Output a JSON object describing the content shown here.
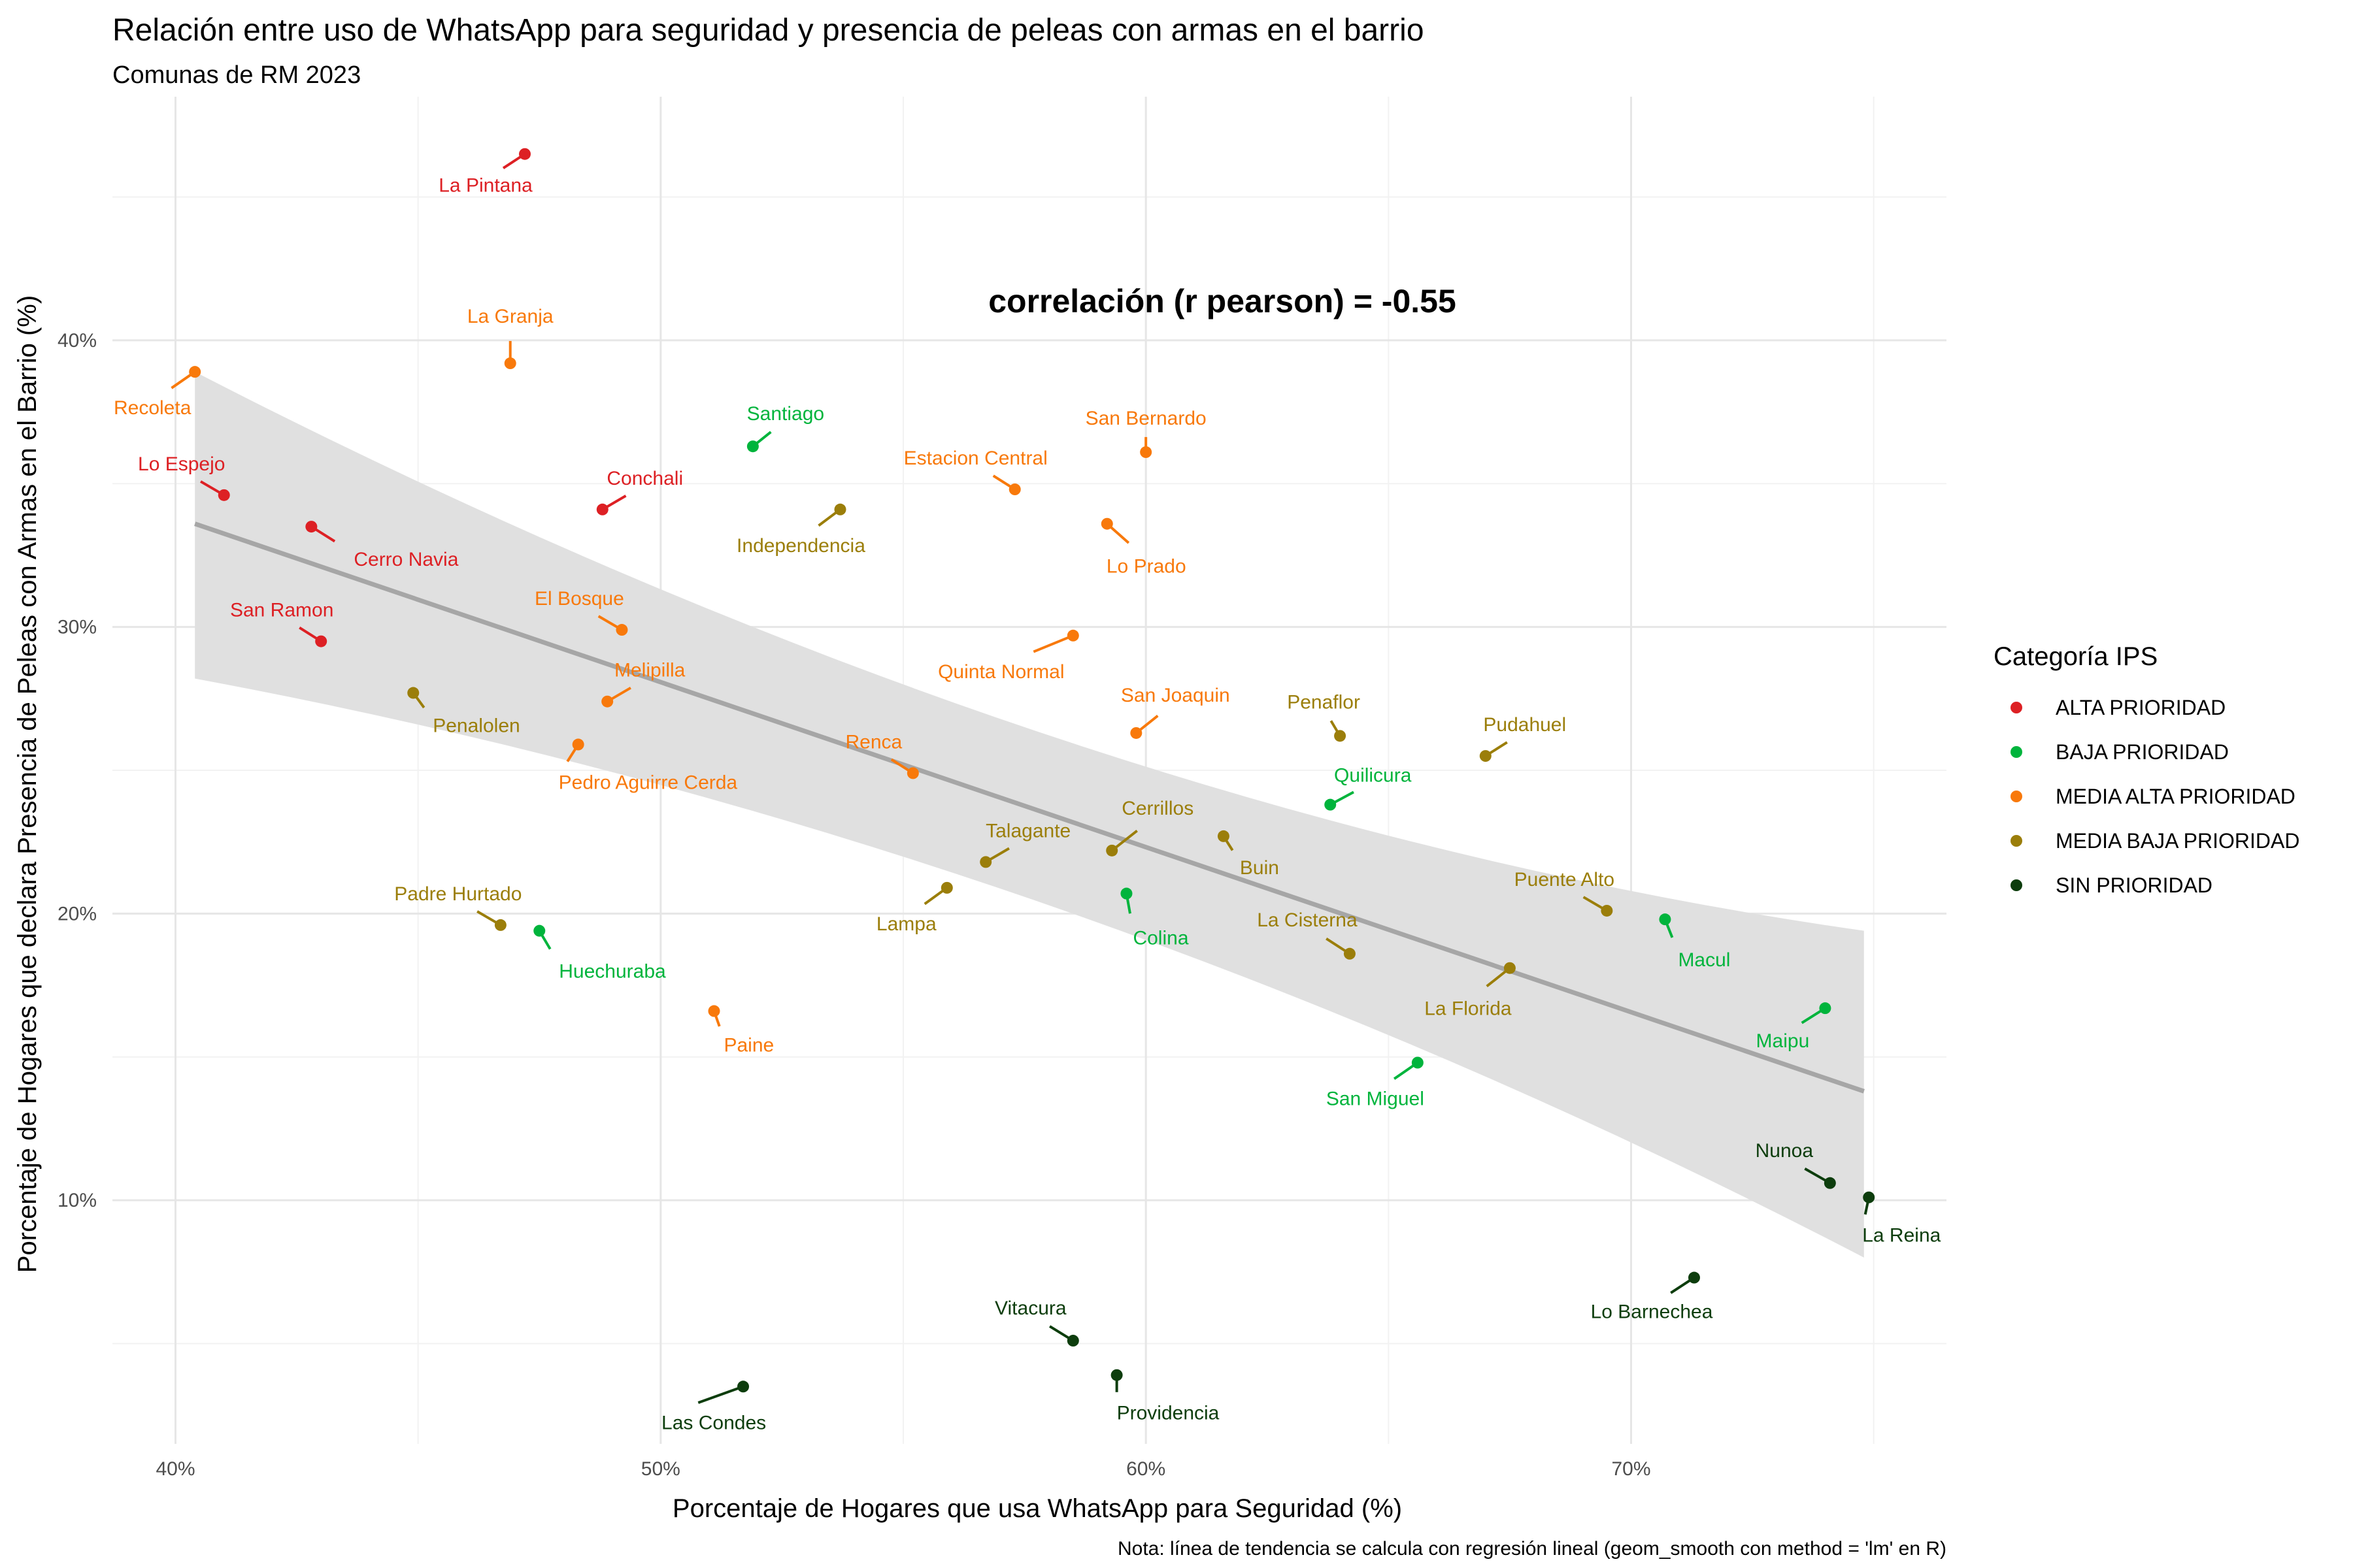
{
  "chart_data": {
    "type": "scatter",
    "title": "Relación entre uso de WhatsApp para seguridad y presencia de peleas con armas en el barrio",
    "subtitle": "Comunas de RM 2023",
    "xlabel": "Porcentaje de Hogares que usa WhatsApp para Seguridad (%)",
    "ylabel": "Porcentaje de Hogares que declara Presencia de Peleas con Armas en el Barrio (%)",
    "caption": "Nota: línea de tendencia se calcula con regresión lineal (geom_smooth con method = 'lm' en R)",
    "annotation": "correlación (r pearson) = -0.55",
    "xlim": [
      38.7,
      76.5
    ],
    "ylim": [
      1.5,
      48.5
    ],
    "x_ticks": [
      40,
      50,
      60,
      70
    ],
    "x_tick_labels": [
      "40%",
      "50%",
      "60%",
      "70%"
    ],
    "y_ticks": [
      10,
      20,
      30,
      40
    ],
    "y_tick_labels": [
      "10%",
      "20%",
      "30%",
      "40%"
    ],
    "grid": true,
    "legend": {
      "title": "Categoría IPS",
      "position": "right",
      "entries": [
        {
          "label": "ALTA PRIORIDAD",
          "color": "#dd2024"
        },
        {
          "label": "BAJA PRIORIDAD",
          "color": "#00b43c"
        },
        {
          "label": "MEDIA ALTA PRIORIDAD",
          "color": "#f8790b"
        },
        {
          "label": "MEDIA BAJA PRIORIDAD",
          "color": "#9b7e0a"
        },
        {
          "label": "SIN PRIORIDAD",
          "color": "#0d3d0d"
        }
      ]
    },
    "trend": {
      "type": "linear",
      "x": [
        40.4,
        74.8
      ],
      "y": [
        33.6,
        13.8
      ],
      "ci_upper": [
        38.9,
        19.4
      ],
      "ci_lower": [
        28.2,
        8.0
      ],
      "ci_mid_x": 58.2,
      "ci_mid_upper": [
        25.4
      ],
      "ci_mid_lower": [
        20.6
      ],
      "line_color": "#a6a6a6",
      "band_color": "#e0e0e0"
    },
    "points": [
      {
        "name": "La Pintana",
        "x": 47.2,
        "y": 46.5,
        "category": 0
      },
      {
        "name": "La Granja",
        "x": 46.9,
        "y": 39.2,
        "category": 2
      },
      {
        "name": "Recoleta",
        "x": 40.4,
        "y": 38.9,
        "category": 2
      },
      {
        "name": "Santiago",
        "x": 51.9,
        "y": 36.3,
        "category": 1
      },
      {
        "name": "San Bernardo",
        "x": 60.0,
        "y": 36.1,
        "category": 2
      },
      {
        "name": "Estacion Central",
        "x": 57.3,
        "y": 34.8,
        "category": 2
      },
      {
        "name": "Lo Espejo",
        "x": 41.0,
        "y": 34.6,
        "category": 0
      },
      {
        "name": "Conchali",
        "x": 48.8,
        "y": 34.1,
        "category": 0
      },
      {
        "name": "Independencia",
        "x": 53.7,
        "y": 34.1,
        "category": 3
      },
      {
        "name": "Lo Prado",
        "x": 59.2,
        "y": 33.6,
        "category": 2
      },
      {
        "name": "Cerro Navia",
        "x": 42.8,
        "y": 33.5,
        "category": 0
      },
      {
        "name": "El Bosque",
        "x": 49.2,
        "y": 29.9,
        "category": 2
      },
      {
        "name": "Quinta Normal",
        "x": 58.5,
        "y": 29.7,
        "category": 2
      },
      {
        "name": "San Ramon",
        "x": 43.0,
        "y": 29.5,
        "category": 0
      },
      {
        "name": "Penalolen",
        "x": 44.9,
        "y": 27.7,
        "category": 3
      },
      {
        "name": "Melipilla",
        "x": 48.9,
        "y": 27.4,
        "category": 2
      },
      {
        "name": "San Joaquin",
        "x": 59.8,
        "y": 26.3,
        "category": 2
      },
      {
        "name": "Penaflor",
        "x": 64.0,
        "y": 26.2,
        "category": 3
      },
      {
        "name": "Pedro Aguirre Cerda",
        "x": 48.3,
        "y": 25.9,
        "category": 2
      },
      {
        "name": "Pudahuel",
        "x": 67.0,
        "y": 25.5,
        "category": 3
      },
      {
        "name": "Renca",
        "x": 55.2,
        "y": 24.9,
        "category": 2
      },
      {
        "name": "Quilicura",
        "x": 63.8,
        "y": 23.8,
        "category": 1
      },
      {
        "name": "Buin",
        "x": 61.6,
        "y": 22.7,
        "category": 3
      },
      {
        "name": "Cerrillos",
        "x": 59.3,
        "y": 22.2,
        "category": 3
      },
      {
        "name": "Talagante",
        "x": 56.7,
        "y": 21.8,
        "category": 3
      },
      {
        "name": "Lampa",
        "x": 55.9,
        "y": 20.9,
        "category": 3
      },
      {
        "name": "Colina",
        "x": 59.6,
        "y": 20.7,
        "category": 1
      },
      {
        "name": "Puente Alto",
        "x": 69.5,
        "y": 20.1,
        "category": 3
      },
      {
        "name": "Macul",
        "x": 70.7,
        "y": 19.8,
        "category": 1
      },
      {
        "name": "Padre Hurtado",
        "x": 46.7,
        "y": 19.6,
        "category": 3
      },
      {
        "name": "Huechuraba",
        "x": 47.5,
        "y": 19.4,
        "category": 1
      },
      {
        "name": "La Cisterna",
        "x": 64.2,
        "y": 18.6,
        "category": 3
      },
      {
        "name": "La Florida",
        "x": 67.5,
        "y": 18.1,
        "category": 3
      },
      {
        "name": "Maipu",
        "x": 74.0,
        "y": 16.7,
        "category": 1
      },
      {
        "name": "Paine",
        "x": 51.1,
        "y": 16.6,
        "category": 2
      },
      {
        "name": "San Miguel",
        "x": 65.6,
        "y": 14.8,
        "category": 1
      },
      {
        "name": "Nunoa",
        "x": 74.1,
        "y": 10.6,
        "category": 4
      },
      {
        "name": "La Reina",
        "x": 74.9,
        "y": 10.1,
        "category": 4
      },
      {
        "name": "Lo Barnechea",
        "x": 71.3,
        "y": 7.3,
        "category": 4
      },
      {
        "name": "Vitacura",
        "x": 58.5,
        "y": 5.1,
        "category": 4
      },
      {
        "name": "Providencia",
        "x": 59.4,
        "y": 3.9,
        "category": 4
      },
      {
        "name": "Las Condes",
        "x": 51.7,
        "y": 3.5,
        "category": 4
      }
    ]
  }
}
